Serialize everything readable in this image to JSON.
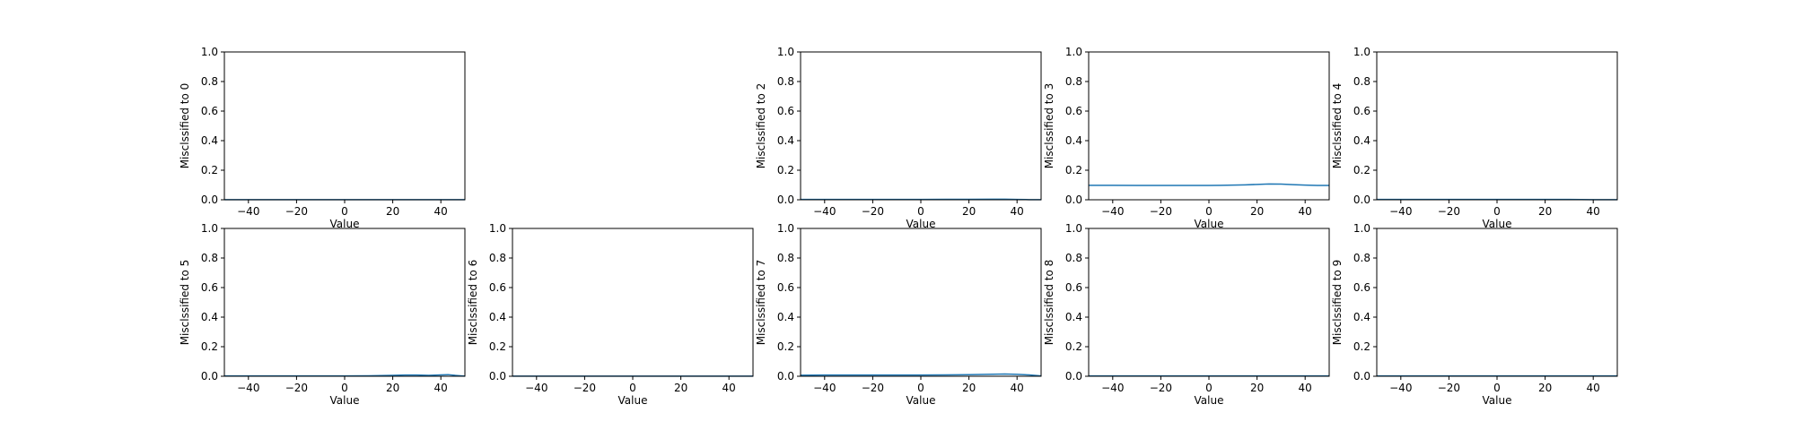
{
  "figure": {
    "background": "#ffffff"
  },
  "chart_data": [
    {
      "type": "line",
      "panel": 0,
      "xlabel": "Value",
      "ylabel": "Misclssified to 0",
      "xlim": [
        -50,
        50
      ],
      "ylim": [
        0,
        1
      ],
      "xticks": [
        -40,
        -20,
        0,
        20,
        40
      ],
      "yticks": [
        0.0,
        0.2,
        0.4,
        0.6,
        0.8,
        1.0
      ],
      "series": [
        {
          "color": "#1f77b4",
          "x": [
            -50,
            -40,
            -30,
            -20,
            -10,
            0,
            10,
            20,
            30,
            40,
            50
          ],
          "y": [
            0.001,
            0.001,
            0.001,
            0.001,
            0.001,
            0.001,
            0.001,
            0.001,
            0.001,
            0.001,
            0.001
          ]
        }
      ]
    },
    {
      "type": "line",
      "panel": 2,
      "xlabel": "Value",
      "ylabel": "Misclssified to 2",
      "xlim": [
        -50,
        50
      ],
      "ylim": [
        0,
        1
      ],
      "xticks": [
        -40,
        -20,
        0,
        20,
        40
      ],
      "yticks": [
        0.0,
        0.2,
        0.4,
        0.6,
        0.8,
        1.0
      ],
      "series": [
        {
          "color": "#1f77b4",
          "x": [
            -50,
            -40,
            -30,
            -20,
            -10,
            0,
            10,
            20,
            30,
            35,
            40,
            45,
            50
          ],
          "y": [
            0.002,
            0.002,
            0.002,
            0.002,
            0.002,
            0.002,
            0.003,
            0.003,
            0.004,
            0.004,
            0.002,
            0.001,
            0.001
          ]
        }
      ]
    },
    {
      "type": "line",
      "panel": 3,
      "xlabel": "Value",
      "ylabel": "Misclssified to 3",
      "xlim": [
        -50,
        50
      ],
      "ylim": [
        0,
        1
      ],
      "xticks": [
        -40,
        -20,
        0,
        20,
        40
      ],
      "yticks": [
        0.0,
        0.2,
        0.4,
        0.6,
        0.8,
        1.0
      ],
      "series": [
        {
          "color": "#1f77b4",
          "x": [
            -50,
            -40,
            -30,
            -20,
            -10,
            0,
            5,
            10,
            15,
            20,
            25,
            30,
            35,
            40,
            45,
            50
          ],
          "y": [
            0.098,
            0.098,
            0.097,
            0.097,
            0.097,
            0.097,
            0.098,
            0.099,
            0.101,
            0.104,
            0.107,
            0.106,
            0.102,
            0.099,
            0.097,
            0.097
          ]
        }
      ]
    },
    {
      "type": "line",
      "panel": 4,
      "xlabel": "Value",
      "ylabel": "Misclssified to 4",
      "xlim": [
        -50,
        50
      ],
      "ylim": [
        0,
        1
      ],
      "xticks": [
        -40,
        -20,
        0,
        20,
        40
      ],
      "yticks": [
        0.0,
        0.2,
        0.4,
        0.6,
        0.8,
        1.0
      ],
      "series": [
        {
          "color": "#1f77b4",
          "x": [
            -50,
            -40,
            -30,
            -20,
            -10,
            0,
            10,
            20,
            30,
            40,
            50
          ],
          "y": [
            0.002,
            0.002,
            0.002,
            0.002,
            0.002,
            0.002,
            0.002,
            0.002,
            0.002,
            0.001,
            0.001
          ]
        }
      ]
    },
    {
      "type": "line",
      "panel": 5,
      "xlabel": "Value",
      "ylabel": "Misclssified to 5",
      "xlim": [
        -50,
        50
      ],
      "ylim": [
        0,
        1
      ],
      "xticks": [
        -40,
        -20,
        0,
        20,
        40
      ],
      "yticks": [
        0.0,
        0.2,
        0.4,
        0.6,
        0.8,
        1.0
      ],
      "series": [
        {
          "color": "#1f77b4",
          "x": [
            -50,
            -40,
            -30,
            -20,
            -10,
            0,
            10,
            20,
            25,
            30,
            35,
            40,
            43,
            46,
            50
          ],
          "y": [
            0.002,
            0.002,
            0.002,
            0.002,
            0.002,
            0.002,
            0.003,
            0.006,
            0.008,
            0.008,
            0.006,
            0.009,
            0.011,
            0.006,
            0.001
          ]
        }
      ]
    },
    {
      "type": "line",
      "panel": 6,
      "xlabel": "Value",
      "ylabel": "Misclssified to 6",
      "xlim": [
        -50,
        50
      ],
      "ylim": [
        0,
        1
      ],
      "xticks": [
        -40,
        -20,
        0,
        20,
        40
      ],
      "yticks": [
        0.0,
        0.2,
        0.4,
        0.6,
        0.8,
        1.0
      ],
      "series": [
        {
          "color": "#1f77b4",
          "x": [
            -50,
            -40,
            -30,
            -20,
            -10,
            0,
            10,
            20,
            30,
            40,
            50
          ],
          "y": [
            0.001,
            0.001,
            0.001,
            0.001,
            0.001,
            0.001,
            0.001,
            0.001,
            0.001,
            0.001,
            0.001
          ]
        }
      ]
    },
    {
      "type": "line",
      "panel": 7,
      "xlabel": "Value",
      "ylabel": "Misclssified to 7",
      "xlim": [
        -50,
        50
      ],
      "ylim": [
        0,
        1
      ],
      "xticks": [
        -40,
        -20,
        0,
        20,
        40
      ],
      "yticks": [
        0.0,
        0.2,
        0.4,
        0.6,
        0.8,
        1.0
      ],
      "series": [
        {
          "color": "#1f77b4",
          "x": [
            -50,
            -40,
            -30,
            -20,
            -10,
            0,
            10,
            20,
            30,
            35,
            40,
            45,
            50
          ],
          "y": [
            0.007,
            0.008,
            0.008,
            0.008,
            0.008,
            0.008,
            0.009,
            0.011,
            0.014,
            0.015,
            0.013,
            0.009,
            0.002
          ]
        }
      ]
    },
    {
      "type": "line",
      "panel": 8,
      "xlabel": "Value",
      "ylabel": "Misclssified to 8",
      "xlim": [
        -50,
        50
      ],
      "ylim": [
        0,
        1
      ],
      "xticks": [
        -40,
        -20,
        0,
        20,
        40
      ],
      "yticks": [
        0.0,
        0.2,
        0.4,
        0.6,
        0.8,
        1.0
      ],
      "series": [
        {
          "color": "#1f77b4",
          "x": [
            -50,
            -40,
            -30,
            -20,
            -10,
            0,
            10,
            20,
            30,
            40,
            50
          ],
          "y": [
            0.002,
            0.002,
            0.002,
            0.002,
            0.002,
            0.002,
            0.002,
            0.002,
            0.002,
            0.002,
            0.002
          ]
        }
      ]
    },
    {
      "type": "line",
      "panel": 9,
      "xlabel": "Value",
      "ylabel": "Misclssified to 9",
      "xlim": [
        -50,
        50
      ],
      "ylim": [
        0,
        1
      ],
      "xticks": [
        -40,
        -20,
        0,
        20,
        40
      ],
      "yticks": [
        0.0,
        0.2,
        0.4,
        0.6,
        0.8,
        1.0
      ],
      "series": [
        {
          "color": "#1f77b4",
          "x": [
            -50,
            -40,
            -30,
            -20,
            -10,
            0,
            10,
            20,
            30,
            40,
            50
          ],
          "y": [
            0.002,
            0.002,
            0.002,
            0.002,
            0.002,
            0.002,
            0.002,
            0.002,
            0.002,
            0.002,
            0.002
          ]
        }
      ]
    }
  ]
}
